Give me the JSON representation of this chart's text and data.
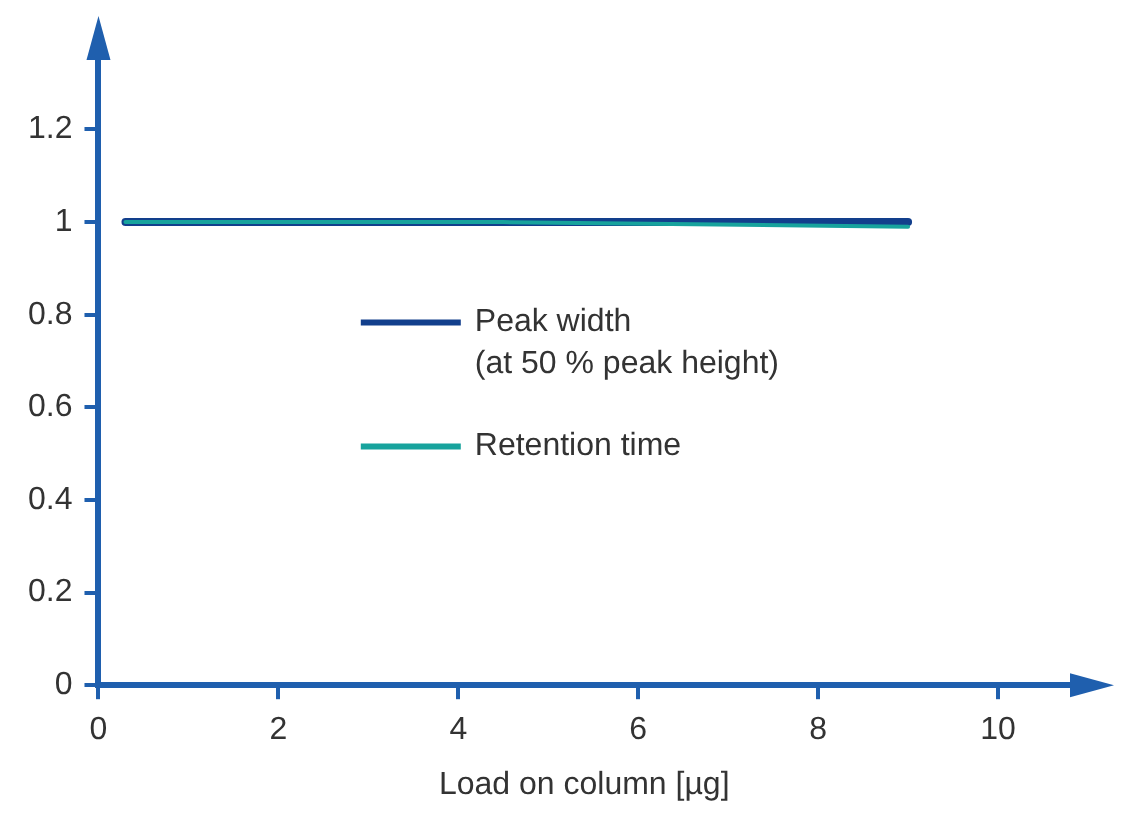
{
  "chart_data": {
    "type": "line",
    "xlabel": "Load on column [µg]",
    "x": [
      0.3,
      4.5,
      9
    ],
    "series": [
      {
        "name": "Peak width\n(at 50 % peak height)",
        "color": "#123f8c",
        "values": [
          1,
          1,
          1
        ]
      },
      {
        "name": "Retention time",
        "color": "#17a39d",
        "values": [
          1,
          1,
          0.99
        ]
      }
    ],
    "xlim": [
      0,
      10.8
    ],
    "xticks": [
      0,
      2,
      4,
      6,
      8,
      10
    ],
    "ylim": [
      0,
      1.35
    ],
    "yticks": [
      0,
      0.2,
      0.4,
      0.6,
      0.8,
      1,
      1.2
    ],
    "grid": false,
    "legend": "center",
    "marker": "none",
    "line_style": "solid"
  }
}
